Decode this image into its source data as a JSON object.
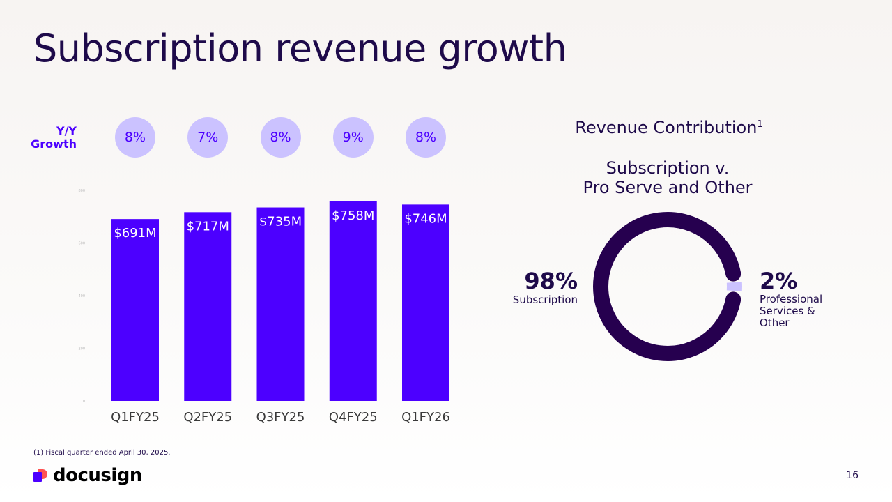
{
  "slide": {
    "title": "Subscription revenue growth",
    "footnote": "(1) Fiscal quarter ended April 30, 2025.",
    "logo_text": "docusign",
    "page_number": "16"
  },
  "colors": {
    "bar": "#4c00ff",
    "bubble": "#cbc2ff",
    "donut_main": "#26004f",
    "donut_other": "#cbc2ff",
    "title": "#1e0a4a"
  },
  "growth": {
    "label_line1": "Y/Y",
    "label_line2": "Growth",
    "values": [
      "8%",
      "7%",
      "8%",
      "9%",
      "8%"
    ]
  },
  "chart_data": [
    {
      "type": "bar",
      "categories": [
        "Q1FY25",
        "Q2FY25",
        "Q3FY25",
        "Q4FY25",
        "Q1FY26"
      ],
      "values": [
        691,
        717,
        735,
        758,
        746
      ],
      "value_labels": [
        "$691M",
        "$717M",
        "$735M",
        "$758M",
        "$746M"
      ],
      "yticks": [
        "0",
        "200",
        "400",
        "600",
        "800"
      ],
      "ylim": [
        0,
        800
      ],
      "grid": false
    },
    {
      "type": "pie",
      "title": "Revenue Contribution",
      "title_sup": "1",
      "subtitle_line1": "Subscription v.",
      "subtitle_line2": "Pro Serve and Other",
      "slices": [
        {
          "label": "Subscription",
          "value": 98,
          "pct_label": "98%"
        },
        {
          "label": "Professional Services & Other",
          "value": 2,
          "pct_label": "2%"
        }
      ]
    }
  ]
}
